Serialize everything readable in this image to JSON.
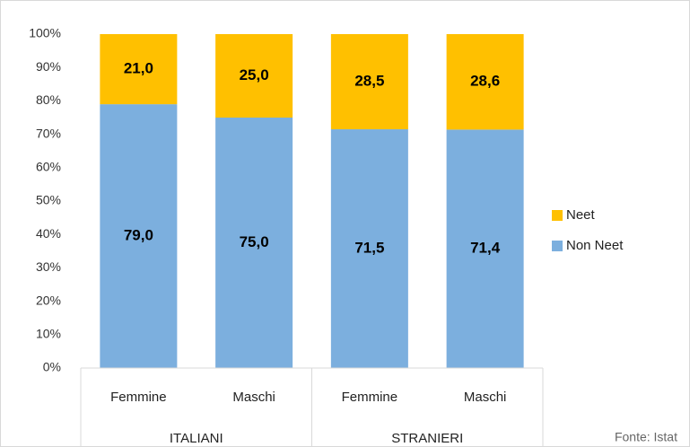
{
  "chart_data": {
    "type": "stacked_bar",
    "categories": [
      "Femmine",
      "Maschi",
      "Femmine",
      "Maschi"
    ],
    "groups": [
      "ITALIANI",
      "STRANIERI"
    ],
    "series": [
      {
        "name": "Non Neet",
        "color": "#7cafde",
        "values": [
          79.0,
          75.0,
          71.5,
          71.4
        ],
        "value_labels": [
          "79,0",
          "75,0",
          "71,5",
          "71,4"
        ]
      },
      {
        "name": "Neet",
        "color": "#ffc000",
        "values": [
          21.0,
          25.0,
          28.5,
          28.6
        ],
        "value_labels": [
          "21,0",
          "25,0",
          "28,5",
          "28,6"
        ]
      }
    ],
    "ylim": [
      0,
      100
    ],
    "yticks": [
      {
        "value": 0,
        "label": "0%"
      },
      {
        "value": 10,
        "label": "10%"
      },
      {
        "value": 20,
        "label": "20%"
      },
      {
        "value": 30,
        "label": "30%"
      },
      {
        "value": 40,
        "label": "40%"
      },
      {
        "value": 50,
        "label": "50%"
      },
      {
        "value": 60,
        "label": "60%"
      },
      {
        "value": 70,
        "label": "70%"
      },
      {
        "value": 80,
        "label": "80%"
      },
      {
        "value": 90,
        "label": "90%"
      },
      {
        "value": 100,
        "label": "100%"
      }
    ],
    "grid": false,
    "legend": "right",
    "annotation": "Fonte: Istat"
  }
}
